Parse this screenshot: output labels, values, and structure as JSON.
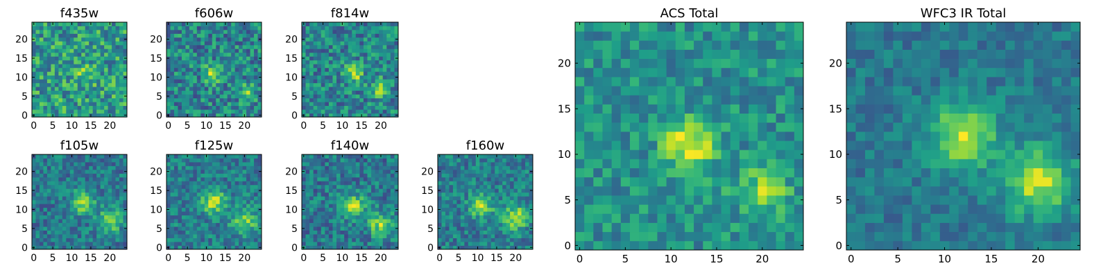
{
  "figure": {
    "background": "#ffffff",
    "colormap": "viridis"
  },
  "chart_data": [
    {
      "type": "heatmap",
      "title": "f435w",
      "grid_size": [
        25,
        25
      ],
      "xlim": [
        -0.5,
        24.5
      ],
      "ylim": [
        -0.5,
        24.5
      ],
      "xticks": [
        0,
        5,
        10,
        15,
        20
      ],
      "yticks": [
        0,
        5,
        10,
        15,
        20
      ],
      "sources": [
        {
          "x": 13,
          "y": 11,
          "strength": 0.15,
          "sigma": 2.2
        }
      ],
      "noise": 0.26,
      "base": 0.55,
      "seed": 11
    },
    {
      "type": "heatmap",
      "title": "f606w",
      "grid_size": [
        25,
        25
      ],
      "xlim": [
        -0.5,
        24.5
      ],
      "ylim": [
        -0.5,
        24.5
      ],
      "xticks": [
        0,
        5,
        10,
        15,
        20
      ],
      "yticks": [
        0,
        5,
        10,
        15,
        20
      ],
      "sources": [
        {
          "x": 12,
          "y": 11,
          "strength": 0.45,
          "sigma": 1.6
        },
        {
          "x": 21,
          "y": 6,
          "strength": 0.3,
          "sigma": 1.6
        }
      ],
      "noise": 0.24,
      "base": 0.45,
      "seed": 23
    },
    {
      "type": "heatmap",
      "title": "f814w",
      "grid_size": [
        25,
        25
      ],
      "xlim": [
        -0.5,
        24.5
      ],
      "ylim": [
        -0.5,
        24.5
      ],
      "xticks": [
        0,
        5,
        10,
        15,
        20
      ],
      "yticks": [
        0,
        5,
        10,
        15,
        20
      ],
      "sources": [
        {
          "x": 13,
          "y": 11,
          "strength": 0.45,
          "sigma": 1.6
        },
        {
          "x": 20,
          "y": 7,
          "strength": 0.32,
          "sigma": 1.7
        }
      ],
      "noise": 0.23,
      "base": 0.45,
      "seed": 37
    },
    {
      "type": "heatmap",
      "title": "f105w",
      "grid_size": [
        25,
        25
      ],
      "xlim": [
        -0.5,
        24.5
      ],
      "ylim": [
        -0.5,
        24.5
      ],
      "xticks": [
        0,
        5,
        10,
        15,
        20
      ],
      "yticks": [
        0,
        5,
        10,
        15,
        20
      ],
      "sources": [
        {
          "x": 13,
          "y": 12,
          "strength": 0.5,
          "sigma": 2.0
        },
        {
          "x": 20,
          "y": 7,
          "strength": 0.4,
          "sigma": 2.2
        }
      ],
      "noise": 0.18,
      "base": 0.4,
      "seed": 41
    },
    {
      "type": "heatmap",
      "title": "f125w",
      "grid_size": [
        25,
        25
      ],
      "xlim": [
        -0.5,
        24.5
      ],
      "ylim": [
        -0.5,
        24.5
      ],
      "xticks": [
        0,
        5,
        10,
        15,
        20
      ],
      "yticks": [
        0,
        5,
        10,
        15,
        20
      ],
      "sources": [
        {
          "x": 12,
          "y": 12,
          "strength": 0.45,
          "sigma": 2.2
        },
        {
          "x": 20,
          "y": 7,
          "strength": 0.4,
          "sigma": 2.3
        }
      ],
      "noise": 0.18,
      "base": 0.42,
      "seed": 53
    },
    {
      "type": "heatmap",
      "title": "f140w",
      "grid_size": [
        25,
        25
      ],
      "xlim": [
        -0.5,
        24.5
      ],
      "ylim": [
        -0.5,
        24.5
      ],
      "xticks": [
        0,
        5,
        10,
        15,
        20
      ],
      "yticks": [
        0,
        5,
        10,
        15,
        20
      ],
      "sources": [
        {
          "x": 13,
          "y": 11,
          "strength": 0.45,
          "sigma": 2.2
        },
        {
          "x": 20,
          "y": 6,
          "strength": 0.45,
          "sigma": 2.2
        }
      ],
      "noise": 0.19,
      "base": 0.4,
      "seed": 67
    },
    {
      "type": "heatmap",
      "title": "f160w",
      "grid_size": [
        25,
        25
      ],
      "xlim": [
        -0.5,
        24.5
      ],
      "ylim": [
        -0.5,
        24.5
      ],
      "xticks": [
        0,
        5,
        10,
        15,
        20
      ],
      "yticks": [
        0,
        5,
        10,
        15,
        20
      ],
      "sources": [
        {
          "x": 11,
          "y": 11,
          "strength": 0.4,
          "sigma": 2.3
        },
        {
          "x": 20,
          "y": 8,
          "strength": 0.45,
          "sigma": 2.2
        }
      ],
      "noise": 0.18,
      "base": 0.42,
      "seed": 79
    },
    {
      "type": "heatmap",
      "title": "ACS Total",
      "grid_size": [
        25,
        25
      ],
      "xlim": [
        -0.5,
        24.5
      ],
      "ylim": [
        -0.5,
        24.5
      ],
      "xticks": [
        0,
        5,
        10,
        15,
        20
      ],
      "yticks": [
        0,
        5,
        10,
        15,
        20
      ],
      "sources": [
        {
          "x": 12,
          "y": 11,
          "strength": 0.5,
          "sigma": 1.9
        },
        {
          "x": 20,
          "y": 6,
          "strength": 0.3,
          "sigma": 2.0
        }
      ],
      "noise": 0.17,
      "base": 0.5,
      "seed": 97
    },
    {
      "type": "heatmap",
      "title": "WFC3 IR Total",
      "grid_size": [
        25,
        25
      ],
      "xlim": [
        -0.5,
        24.5
      ],
      "ylim": [
        -0.5,
        24.5
      ],
      "xticks": [
        0,
        5,
        10,
        15,
        20
      ],
      "yticks": [
        0,
        5,
        10,
        15,
        20
      ],
      "sources": [
        {
          "x": 12,
          "y": 12,
          "strength": 0.5,
          "sigma": 2.5
        },
        {
          "x": 20,
          "y": 7,
          "strength": 0.5,
          "sigma": 2.5
        }
      ],
      "noise": 0.12,
      "base": 0.4,
      "seed": 113
    }
  ]
}
